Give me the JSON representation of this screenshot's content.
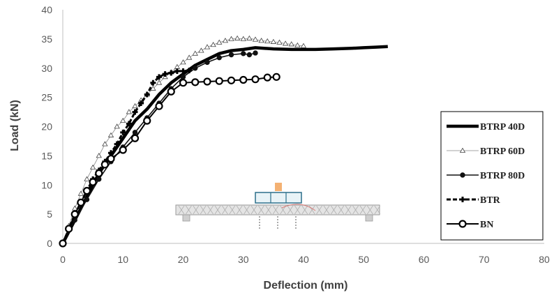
{
  "chart_data": {
    "type": "line",
    "xlabel": "Deflection (mm)",
    "ylabel": "Load (kN)",
    "xlim": [
      0,
      80
    ],
    "ylim": [
      0,
      40
    ],
    "xticks": [
      "0",
      "10",
      "20",
      "30",
      "40",
      "50",
      "60",
      "70",
      "80"
    ],
    "yticks": [
      "0",
      "5",
      "10",
      "15",
      "20",
      "25",
      "30",
      "35",
      "40"
    ],
    "grid": false,
    "legend_position": "right",
    "series": [
      {
        "name": "BTRP 40D",
        "style": "thick-line",
        "points": [
          [
            0,
            0
          ],
          [
            2,
            4
          ],
          [
            4,
            8
          ],
          [
            6,
            12
          ],
          [
            8,
            15
          ],
          [
            10,
            18
          ],
          [
            12,
            21
          ],
          [
            14,
            23
          ],
          [
            16,
            25.5
          ],
          [
            18,
            27.5
          ],
          [
            20,
            29
          ],
          [
            22,
            30.5
          ],
          [
            24,
            31.5
          ],
          [
            26,
            32.5
          ],
          [
            28,
            33
          ],
          [
            30,
            33.2
          ],
          [
            32,
            33.5
          ],
          [
            35,
            33.3
          ],
          [
            38,
            33.2
          ],
          [
            40,
            33.2
          ],
          [
            42,
            33.2
          ],
          [
            45,
            33.3
          ],
          [
            48,
            33.4
          ],
          [
            50,
            33.5
          ],
          [
            52,
            33.6
          ],
          [
            54,
            33.7
          ]
        ]
      },
      {
        "name": "BTRP 60D",
        "style": "triangle",
        "points": [
          [
            0,
            0
          ],
          [
            1,
            3
          ],
          [
            2,
            6
          ],
          [
            3,
            8.5
          ],
          [
            4,
            11
          ],
          [
            5,
            13
          ],
          [
            6,
            15
          ],
          [
            7,
            17
          ],
          [
            8,
            18.5
          ],
          [
            9,
            20
          ],
          [
            10,
            21
          ],
          [
            11,
            22.5
          ],
          [
            12,
            23.5
          ],
          [
            13,
            24.5
          ],
          [
            14,
            25.5
          ],
          [
            15,
            26.5
          ],
          [
            16,
            27.5
          ],
          [
            17,
            28.5
          ],
          [
            18,
            29.3
          ],
          [
            19,
            30.2
          ],
          [
            20,
            31
          ],
          [
            21,
            31.8
          ],
          [
            22,
            32.5
          ],
          [
            23,
            33
          ],
          [
            24,
            33.6
          ],
          [
            25,
            34
          ],
          [
            26,
            34.4
          ],
          [
            27,
            34.7
          ],
          [
            28,
            35
          ],
          [
            29,
            35.1
          ],
          [
            30,
            35
          ],
          [
            31,
            35.1
          ],
          [
            32,
            34.9
          ],
          [
            33,
            34.7
          ],
          [
            34,
            34.6
          ],
          [
            35,
            34.5
          ],
          [
            36,
            34.4
          ],
          [
            37,
            34.2
          ],
          [
            38,
            34.1
          ],
          [
            39,
            33.9
          ],
          [
            40,
            33.8
          ]
        ]
      },
      {
        "name": "BTRP 80D",
        "style": "circle-line",
        "points": [
          [
            0,
            0
          ],
          [
            2,
            4
          ],
          [
            4,
            7.5
          ],
          [
            6,
            11
          ],
          [
            8,
            14
          ],
          [
            10,
            16.5
          ],
          [
            12,
            19
          ],
          [
            14,
            21.5
          ],
          [
            16,
            24
          ],
          [
            18,
            26.5
          ],
          [
            20,
            28.5
          ],
          [
            22,
            30
          ],
          [
            24,
            31
          ],
          [
            26,
            31.8
          ],
          [
            28,
            32.3
          ],
          [
            30,
            32.5
          ],
          [
            31,
            32.3
          ],
          [
            32,
            32.6
          ]
        ]
      },
      {
        "name": "BTR",
        "style": "dashed-cross",
        "points": [
          [
            0,
            0
          ],
          [
            1,
            2.5
          ],
          [
            2,
            5
          ],
          [
            3,
            7
          ],
          [
            4,
            9
          ],
          [
            5,
            11
          ],
          [
            6,
            12.5
          ],
          [
            7,
            14
          ],
          [
            8,
            15.5
          ],
          [
            9,
            17
          ],
          [
            10,
            19
          ],
          [
            11,
            20.5
          ],
          [
            12,
            22.5
          ],
          [
            13,
            24
          ],
          [
            14,
            25.5
          ],
          [
            15,
            27.5
          ],
          [
            16,
            28.5
          ],
          [
            17,
            29
          ],
          [
            18,
            29.2
          ],
          [
            19,
            29.5
          ],
          [
            20,
            29.5
          ],
          [
            21,
            29.6
          ]
        ]
      },
      {
        "name": "BN",
        "style": "open-circle",
        "points": [
          [
            0,
            0
          ],
          [
            1,
            2.5
          ],
          [
            2,
            5
          ],
          [
            3,
            7
          ],
          [
            4,
            9
          ],
          [
            5,
            10.5
          ],
          [
            6,
            12
          ],
          [
            7,
            13.5
          ],
          [
            8,
            14.5
          ],
          [
            10,
            16
          ],
          [
            12,
            18
          ],
          [
            14,
            21
          ],
          [
            16,
            23.5
          ],
          [
            18,
            26
          ],
          [
            20,
            27.5
          ],
          [
            22,
            27.6
          ],
          [
            24,
            27.7
          ],
          [
            26,
            27.8
          ],
          [
            28,
            27.9
          ],
          [
            30,
            28
          ],
          [
            32,
            28.1
          ],
          [
            34,
            28.4
          ],
          [
            35.5,
            28.5
          ]
        ]
      }
    ]
  }
}
